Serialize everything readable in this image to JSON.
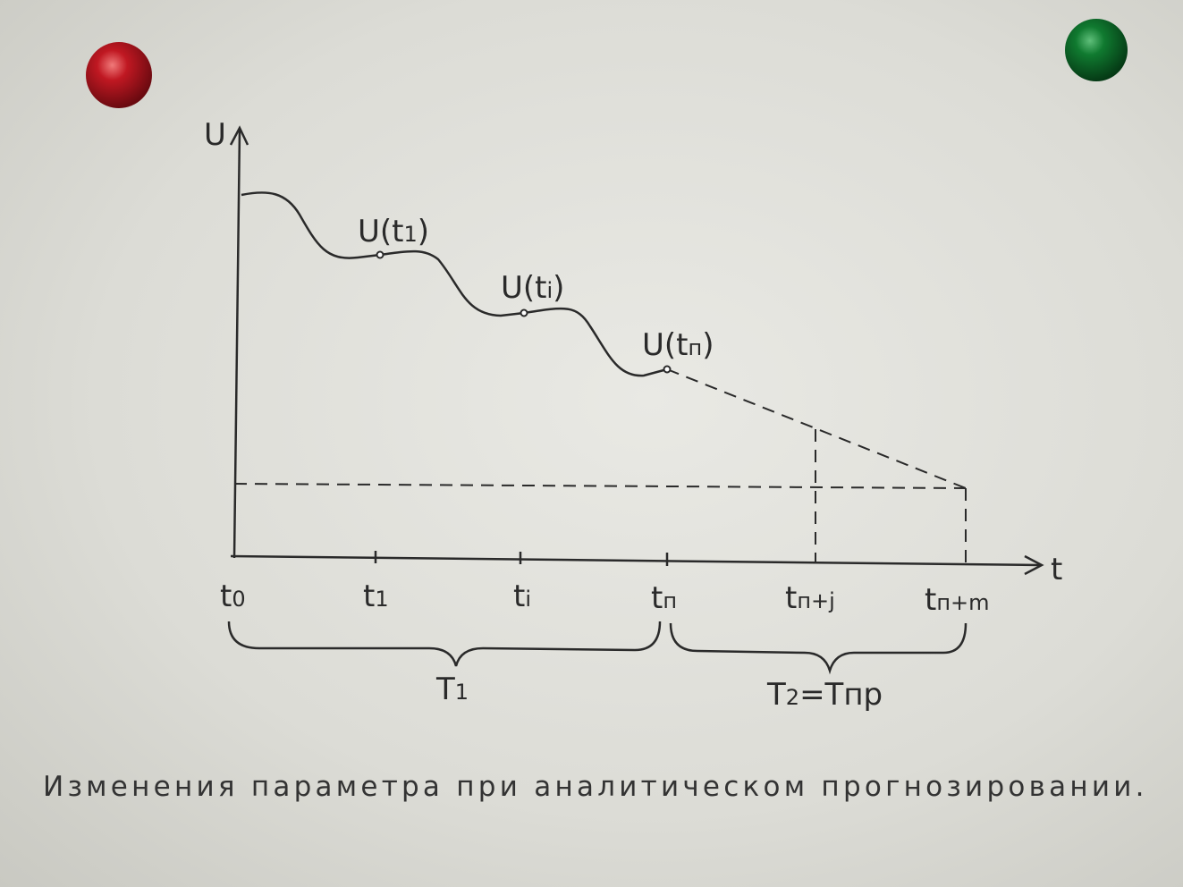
{
  "axes": {
    "y_label": "U",
    "x_label": "t"
  },
  "point_labels": [
    {
      "main": "U(t",
      "sub": "1",
      "end": ")"
    },
    {
      "main": "U(t",
      "sub": "i",
      "end": ")"
    },
    {
      "main": "U(t",
      "sub": "п",
      "end": ")"
    }
  ],
  "tick_labels": [
    {
      "main": "t",
      "sub": "0"
    },
    {
      "main": "t",
      "sub": "1"
    },
    {
      "main": "t",
      "sub": "i"
    },
    {
      "main": "t",
      "sub": "п"
    },
    {
      "main": "t",
      "sub": "п+j"
    },
    {
      "main": "t",
      "sub": "п+m"
    }
  ],
  "intervals": [
    {
      "main": "T",
      "sub": "1",
      "end": ""
    },
    {
      "main": "T",
      "sub": "2",
      "end": "=Tпр"
    }
  ],
  "caption": "Изменения параметра при аналитическом прогнозировании.",
  "colors": {
    "ink": "#2a2a2a",
    "magnet_red": "#b0141c",
    "magnet_green": "#0e6a2a"
  }
}
